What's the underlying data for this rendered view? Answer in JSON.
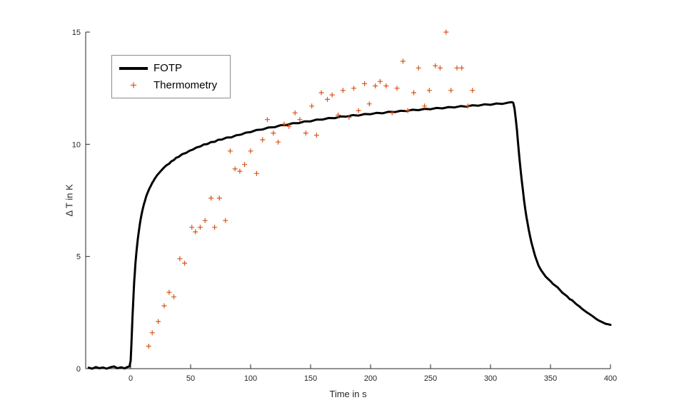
{
  "chart_data": {
    "type": "line+scatter",
    "title": "",
    "xlabel": "Time in s",
    "ylabel": "Δ T in K",
    "xlim": [
      -37.5,
      400
    ],
    "ylim": [
      0,
      15
    ],
    "xticks": [
      0,
      50,
      100,
      150,
      200,
      250,
      300,
      350,
      400
    ],
    "yticks": [
      0,
      5,
      10,
      15
    ],
    "grid": false,
    "axis_color": "#262626",
    "legend": {
      "position": "top-left",
      "entries": [
        "FOTP",
        "Thermometry"
      ]
    },
    "series": [
      {
        "name": "FOTP",
        "type": "line",
        "color": "#000000",
        "line_width": 3,
        "points": [
          [
            -35,
            0.04
          ],
          [
            -32,
            0.0
          ],
          [
            -29,
            0.07
          ],
          [
            -26,
            0.02
          ],
          [
            -23,
            0.05
          ],
          [
            -20,
            0.0
          ],
          [
            -17,
            0.06
          ],
          [
            -14,
            0.1
          ],
          [
            -11,
            0.02
          ],
          [
            -8,
            0.06
          ],
          [
            -5,
            0.01
          ],
          [
            -3,
            0.07
          ],
          [
            -1,
            0.1
          ],
          [
            0,
            0.35
          ],
          [
            0.5,
            0.9
          ],
          [
            1,
            1.6
          ],
          [
            1.5,
            2.25
          ],
          [
            2,
            2.85
          ],
          [
            2.5,
            3.4
          ],
          [
            3,
            3.9
          ],
          [
            3.5,
            4.3
          ],
          [
            4,
            4.7
          ],
          [
            5,
            5.3
          ],
          [
            6,
            5.8
          ],
          [
            7,
            6.2
          ],
          [
            8,
            6.55
          ],
          [
            9,
            6.85
          ],
          [
            10,
            7.1
          ],
          [
            11,
            7.32
          ],
          [
            12,
            7.5
          ],
          [
            13,
            7.68
          ],
          [
            14,
            7.82
          ],
          [
            15,
            7.95
          ],
          [
            16,
            8.07
          ],
          [
            17,
            8.17
          ],
          [
            18,
            8.28
          ],
          [
            19,
            8.36
          ],
          [
            20,
            8.46
          ],
          [
            22,
            8.62
          ],
          [
            24,
            8.74
          ],
          [
            26,
            8.86
          ],
          [
            28,
            8.97
          ],
          [
            30,
            9.07
          ],
          [
            32,
            9.13
          ],
          [
            34,
            9.24
          ],
          [
            36,
            9.3
          ],
          [
            38,
            9.4
          ],
          [
            40,
            9.44
          ],
          [
            43,
            9.56
          ],
          [
            46,
            9.61
          ],
          [
            49,
            9.71
          ],
          [
            52,
            9.77
          ],
          [
            55,
            9.86
          ],
          [
            58,
            9.9
          ],
          [
            61,
            9.99
          ],
          [
            64,
            10.01
          ],
          [
            67,
            10.1
          ],
          [
            70,
            10.11
          ],
          [
            73,
            10.2
          ],
          [
            76,
            10.21
          ],
          [
            80,
            10.3
          ],
          [
            84,
            10.31
          ],
          [
            88,
            10.4
          ],
          [
            92,
            10.43
          ],
          [
            96,
            10.52
          ],
          [
            100,
            10.54
          ],
          [
            105,
            10.64
          ],
          [
            110,
            10.66
          ],
          [
            115,
            10.75
          ],
          [
            120,
            10.76
          ],
          [
            125,
            10.85
          ],
          [
            130,
            10.86
          ],
          [
            135,
            10.94
          ],
          [
            140,
            10.94
          ],
          [
            145,
            11.02
          ],
          [
            150,
            11.02
          ],
          [
            155,
            11.1
          ],
          [
            160,
            11.1
          ],
          [
            165,
            11.17
          ],
          [
            170,
            11.16
          ],
          [
            175,
            11.24
          ],
          [
            180,
            11.23
          ],
          [
            185,
            11.3
          ],
          [
            190,
            11.28
          ],
          [
            195,
            11.35
          ],
          [
            200,
            11.34
          ],
          [
            205,
            11.4
          ],
          [
            210,
            11.38
          ],
          [
            215,
            11.45
          ],
          [
            220,
            11.43
          ],
          [
            225,
            11.49
          ],
          [
            230,
            11.48
          ],
          [
            235,
            11.54
          ],
          [
            240,
            11.52
          ],
          [
            245,
            11.58
          ],
          [
            250,
            11.56
          ],
          [
            255,
            11.62
          ],
          [
            260,
            11.6
          ],
          [
            265,
            11.66
          ],
          [
            270,
            11.64
          ],
          [
            275,
            11.7
          ],
          [
            280,
            11.68
          ],
          [
            285,
            11.74
          ],
          [
            290,
            11.72
          ],
          [
            295,
            11.78
          ],
          [
            300,
            11.76
          ],
          [
            305,
            11.82
          ],
          [
            310,
            11.8
          ],
          [
            315,
            11.86
          ],
          [
            318,
            11.88
          ],
          [
            319,
            11.84
          ],
          [
            320,
            11.6
          ],
          [
            321,
            11.15
          ],
          [
            322,
            10.65
          ],
          [
            323,
            10.05
          ],
          [
            324,
            9.45
          ],
          [
            325,
            8.9
          ],
          [
            326,
            8.4
          ],
          [
            327,
            7.95
          ],
          [
            328,
            7.5
          ],
          [
            329,
            7.1
          ],
          [
            330,
            6.75
          ],
          [
            331,
            6.45
          ],
          [
            332,
            6.15
          ],
          [
            333,
            5.9
          ],
          [
            334,
            5.65
          ],
          [
            335,
            5.45
          ],
          [
            336,
            5.25
          ],
          [
            337,
            5.05
          ],
          [
            338,
            4.9
          ],
          [
            339,
            4.75
          ],
          [
            340,
            4.6
          ],
          [
            342,
            4.4
          ],
          [
            344,
            4.25
          ],
          [
            346,
            4.1
          ],
          [
            348,
            4.0
          ],
          [
            350,
            3.9
          ],
          [
            352,
            3.78
          ],
          [
            354,
            3.7
          ],
          [
            356,
            3.62
          ],
          [
            358,
            3.5
          ],
          [
            360,
            3.38
          ],
          [
            362,
            3.3
          ],
          [
            364,
            3.22
          ],
          [
            366,
            3.1
          ],
          [
            368,
            3.05
          ],
          [
            370,
            2.95
          ],
          [
            372,
            2.85
          ],
          [
            374,
            2.78
          ],
          [
            376,
            2.68
          ],
          [
            378,
            2.6
          ],
          [
            380,
            2.52
          ],
          [
            382,
            2.45
          ],
          [
            384,
            2.38
          ],
          [
            386,
            2.3
          ],
          [
            388,
            2.22
          ],
          [
            390,
            2.15
          ],
          [
            392,
            2.1
          ],
          [
            394,
            2.05
          ],
          [
            396,
            2.0
          ],
          [
            398,
            1.98
          ],
          [
            400,
            1.95
          ]
        ]
      },
      {
        "name": "Thermometry",
        "type": "scatter",
        "marker": "plus",
        "color": "#d95319",
        "marker_size": 7,
        "points": [
          [
            15,
            1.0
          ],
          [
            18,
            1.6
          ],
          [
            23,
            2.1
          ],
          [
            28,
            2.8
          ],
          [
            32,
            3.4
          ],
          [
            36,
            3.2
          ],
          [
            41,
            4.9
          ],
          [
            45,
            4.7
          ],
          [
            51,
            6.3
          ],
          [
            54,
            6.1
          ],
          [
            58,
            6.3
          ],
          [
            62,
            6.6
          ],
          [
            67,
            7.6
          ],
          [
            70,
            6.3
          ],
          [
            74,
            7.6
          ],
          [
            79,
            6.6
          ],
          [
            83,
            9.7
          ],
          [
            87,
            8.9
          ],
          [
            91,
            8.8
          ],
          [
            95,
            9.1
          ],
          [
            100,
            9.7
          ],
          [
            105,
            8.7
          ],
          [
            110,
            10.2
          ],
          [
            114,
            11.1
          ],
          [
            119,
            10.5
          ],
          [
            123,
            10.1
          ],
          [
            128,
            10.9
          ],
          [
            132,
            10.8
          ],
          [
            137,
            11.4
          ],
          [
            141,
            11.1
          ],
          [
            146,
            10.5
          ],
          [
            151,
            11.7
          ],
          [
            155,
            10.4
          ],
          [
            159,
            12.3
          ],
          [
            164,
            12.0
          ],
          [
            168,
            12.2
          ],
          [
            173,
            11.3
          ],
          [
            177,
            12.4
          ],
          [
            182,
            11.2
          ],
          [
            186,
            12.5
          ],
          [
            190,
            11.5
          ],
          [
            195,
            12.7
          ],
          [
            199,
            11.8
          ],
          [
            204,
            12.6
          ],
          [
            208,
            12.8
          ],
          [
            213,
            12.6
          ],
          [
            218,
            11.4
          ],
          [
            222,
            12.5
          ],
          [
            227,
            13.7
          ],
          [
            231,
            11.5
          ],
          [
            236,
            12.3
          ],
          [
            240,
            13.4
          ],
          [
            245,
            11.7
          ],
          [
            249,
            12.4
          ],
          [
            254,
            13.5
          ],
          [
            258,
            13.4
          ],
          [
            263,
            15.0
          ],
          [
            267,
            12.4
          ],
          [
            272,
            13.4
          ],
          [
            276,
            13.4
          ],
          [
            281,
            11.7
          ],
          [
            285,
            12.4
          ]
        ]
      }
    ]
  }
}
